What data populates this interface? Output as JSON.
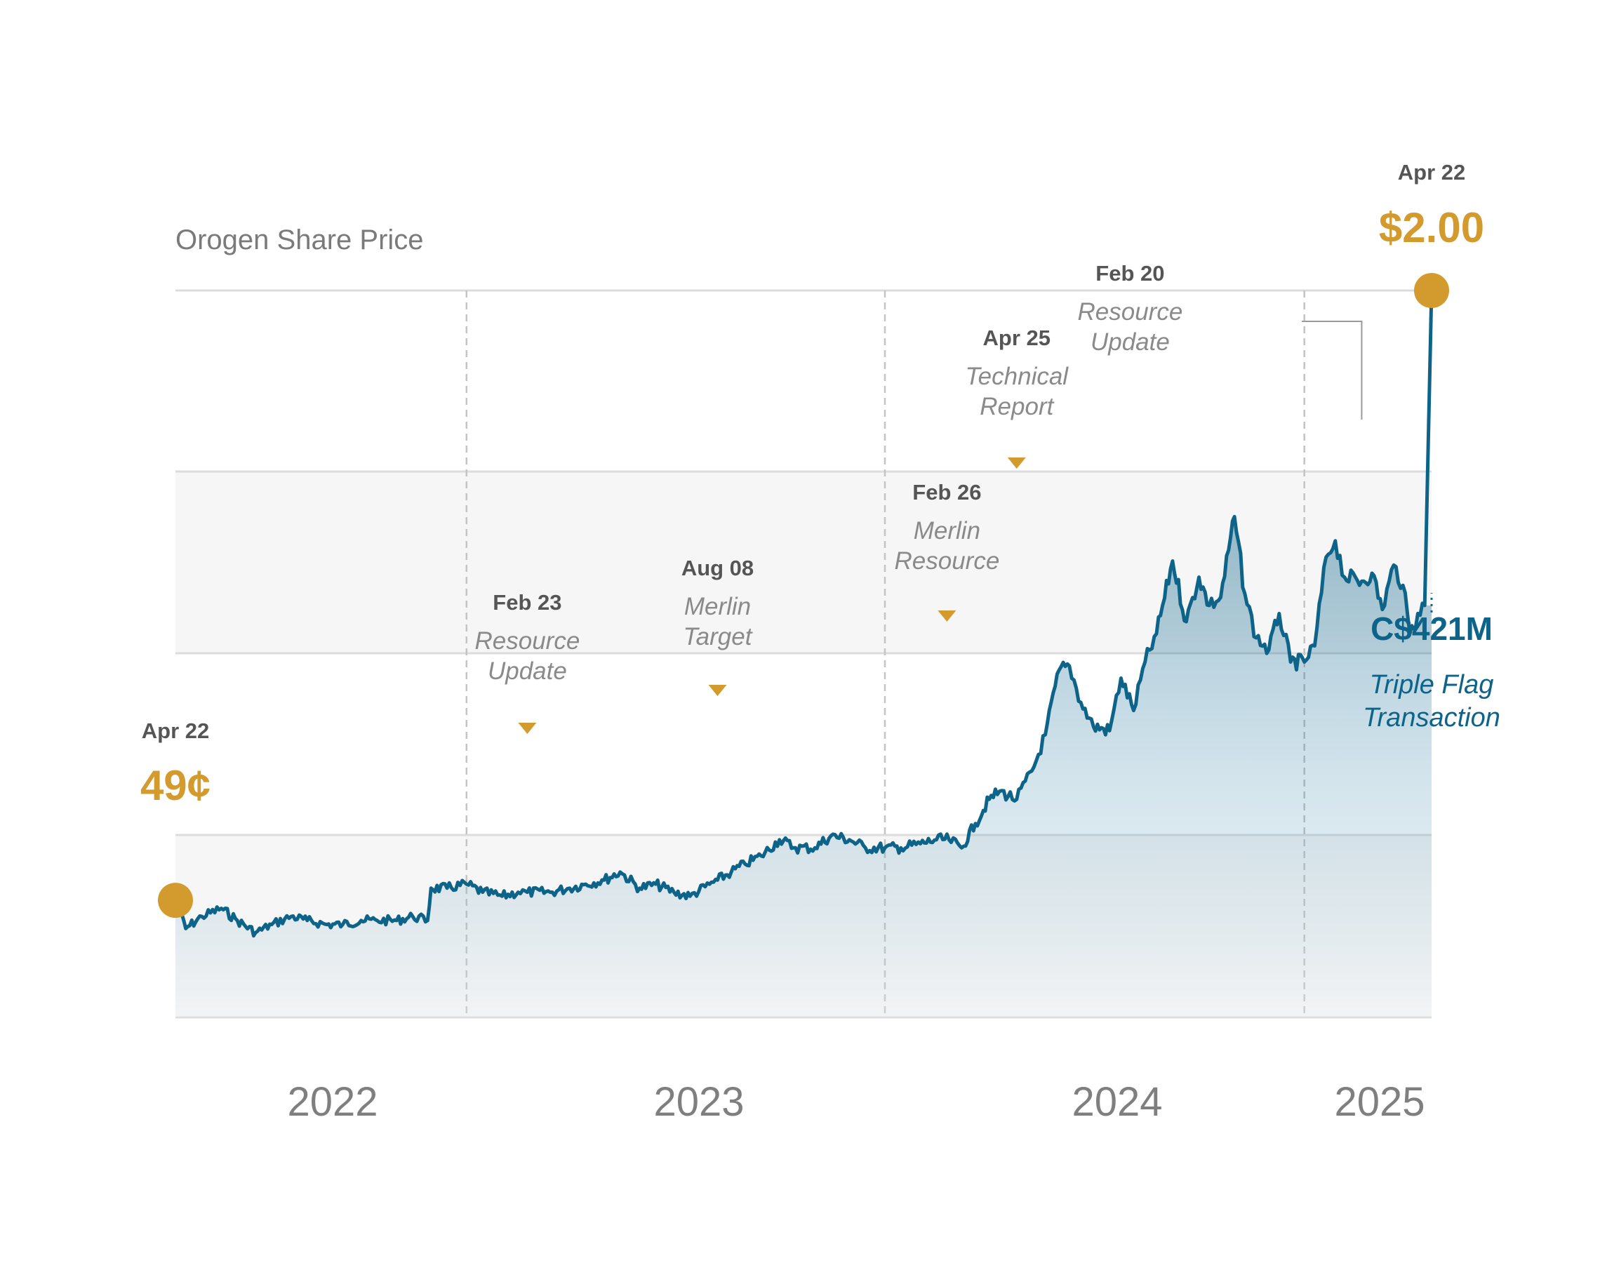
{
  "colors": {
    "line": "#0e6389",
    "accent": "#d39a2e",
    "grid": "#dcdcdc",
    "band": "#f6f6f6",
    "text_muted": "#7f7f7f"
  },
  "chart_data": {
    "type": "line",
    "title": "Orogen Share Price",
    "x_axis": {
      "type": "date",
      "start": "2022-04-22",
      "end": "2025-04-22",
      "labels": [
        "2022",
        "2023",
        "2024",
        "2025"
      ]
    },
    "y_axis": {
      "unit": "C$",
      "range": [
        0.2,
        2.0
      ],
      "ticks_shown": false
    },
    "series": [
      {
        "points": [
          [
            "2022-04-22",
            0.49
          ],
          [
            "2022-05-01",
            0.42
          ],
          [
            "2022-05-15",
            0.45
          ],
          [
            "2022-06-01",
            0.47
          ],
          [
            "2022-06-15",
            0.44
          ],
          [
            "2022-07-01",
            0.41
          ],
          [
            "2022-07-15",
            0.43
          ],
          [
            "2022-08-01",
            0.45
          ],
          [
            "2022-08-15",
            0.44
          ],
          [
            "2022-09-01",
            0.43
          ],
          [
            "2022-09-15",
            0.43
          ],
          [
            "2022-10-01",
            0.44
          ],
          [
            "2022-10-15",
            0.44
          ],
          [
            "2022-11-01",
            0.44
          ],
          [
            "2022-11-15",
            0.45
          ],
          [
            "2022-11-28",
            0.44
          ],
          [
            "2022-12-01",
            0.52
          ],
          [
            "2022-12-15",
            0.52
          ],
          [
            "2023-01-01",
            0.53
          ],
          [
            "2023-01-15",
            0.51
          ],
          [
            "2023-02-01",
            0.5
          ],
          [
            "2023-02-15",
            0.51
          ],
          [
            "2023-02-23",
            0.51
          ],
          [
            "2023-03-15",
            0.51
          ],
          [
            "2023-04-01",
            0.52
          ],
          [
            "2023-04-15",
            0.53
          ],
          [
            "2023-05-01",
            0.54
          ],
          [
            "2023-05-15",
            0.56
          ],
          [
            "2023-06-01",
            0.52
          ],
          [
            "2023-06-15",
            0.53
          ],
          [
            "2023-07-01",
            0.51
          ],
          [
            "2023-07-15",
            0.5
          ],
          [
            "2023-08-01",
            0.53
          ],
          [
            "2023-08-08",
            0.54
          ],
          [
            "2023-08-20",
            0.56
          ],
          [
            "2023-09-01",
            0.58
          ],
          [
            "2023-09-15",
            0.6
          ],
          [
            "2023-10-01",
            0.64
          ],
          [
            "2023-10-15",
            0.62
          ],
          [
            "2023-11-01",
            0.62
          ],
          [
            "2023-11-15",
            0.65
          ],
          [
            "2023-12-01",
            0.64
          ],
          [
            "2023-12-15",
            0.62
          ],
          [
            "2024-01-01",
            0.62
          ],
          [
            "2024-01-15",
            0.62
          ],
          [
            "2024-02-01",
            0.63
          ],
          [
            "2024-02-15",
            0.64
          ],
          [
            "2024-02-26",
            0.64
          ],
          [
            "2024-03-08",
            0.62
          ],
          [
            "2024-03-20",
            0.68
          ],
          [
            "2024-04-01",
            0.74
          ],
          [
            "2024-04-10",
            0.76
          ],
          [
            "2024-04-25",
            0.74
          ],
          [
            "2024-05-10",
            0.82
          ],
          [
            "2024-05-20",
            0.9
          ],
          [
            "2024-06-01",
            1.06
          ],
          [
            "2024-06-10",
            1.07
          ],
          [
            "2024-06-20",
            0.98
          ],
          [
            "2024-07-01",
            0.92
          ],
          [
            "2024-07-15",
            0.91
          ],
          [
            "2024-07-25",
            1.04
          ],
          [
            "2024-08-05",
            0.96
          ],
          [
            "2024-08-15",
            1.08
          ],
          [
            "2024-08-25",
            1.15
          ],
          [
            "2024-09-08",
            1.33
          ],
          [
            "2024-09-20",
            1.18
          ],
          [
            "2024-10-01",
            1.29
          ],
          [
            "2024-10-10",
            1.22
          ],
          [
            "2024-10-20",
            1.24
          ],
          [
            "2024-11-01",
            1.44
          ],
          [
            "2024-11-10",
            1.25
          ],
          [
            "2024-11-20",
            1.14
          ],
          [
            "2024-12-01",
            1.11
          ],
          [
            "2024-12-10",
            1.2
          ],
          [
            "2024-12-20",
            1.08
          ],
          [
            "2025-01-01",
            1.08
          ],
          [
            "2025-01-10",
            1.12
          ],
          [
            "2025-01-20",
            1.34
          ],
          [
            "2025-01-28",
            1.38
          ],
          [
            "2025-02-05",
            1.29
          ],
          [
            "2025-02-20",
            1.28
          ],
          [
            "2025-03-01",
            1.3
          ],
          [
            "2025-03-10",
            1.21
          ],
          [
            "2025-03-20",
            1.32
          ],
          [
            "2025-03-28",
            1.27
          ],
          [
            "2025-04-03",
            1.15
          ],
          [
            "2025-04-10",
            1.2
          ],
          [
            "2025-04-16",
            1.22
          ],
          [
            "2025-04-22",
            2.0
          ]
        ]
      }
    ],
    "period_lines": [
      "2023-01-01",
      "2024-01-01",
      "2025-01-01"
    ],
    "events": [
      {
        "date": "2023-02-23",
        "label_date": "Feb 23",
        "label_lines": [
          "Resource",
          "Update"
        ]
      },
      {
        "date": "2023-08-08",
        "label_date": "Aug 08",
        "label_lines": [
          "Merlin",
          "Target"
        ]
      },
      {
        "date": "2024-02-26",
        "label_date": "Feb 26",
        "label_lines": [
          "Merlin",
          "Resource"
        ]
      },
      {
        "date": "2024-04-25",
        "label_date": "Apr 25",
        "label_lines": [
          "Technical",
          "Report"
        ]
      },
      {
        "date": "2025-02-20",
        "label_date": "Feb 20",
        "label_lines": [
          "Resource",
          "Update"
        ]
      }
    ],
    "start": {
      "date_label": "Apr 22",
      "price_label": "49¢",
      "value": 0.49
    },
    "end": {
      "date_label": "Apr 22",
      "price_label": "$2.00",
      "value": 2.0
    },
    "transaction": {
      "amount": "C$421M",
      "lines": [
        "Triple Flag",
        "Transaction"
      ]
    }
  }
}
